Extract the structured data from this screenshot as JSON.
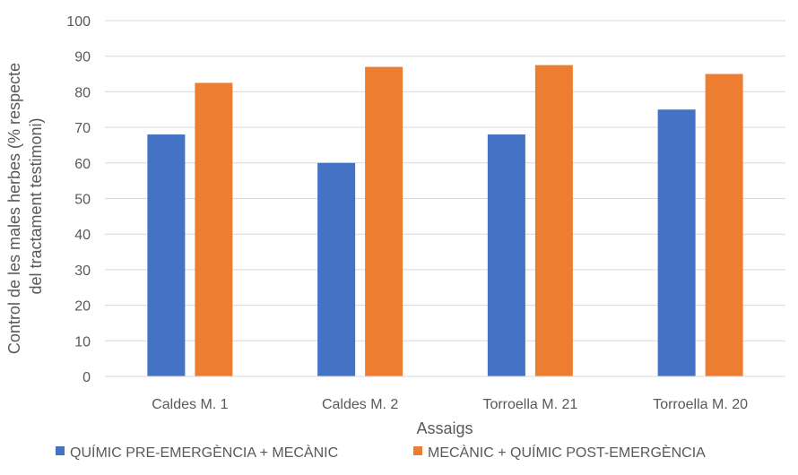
{
  "chart_data": {
    "type": "bar",
    "xlabel": "Assaigs",
    "ylabel_lines": [
      "Control de les males herbes (% respecte",
      "del tractament testimoni)"
    ],
    "categories": [
      "Caldes M. 1",
      "Caldes M. 2",
      "Torroella M. 21",
      "Torroella M. 20"
    ],
    "series": [
      {
        "name": "QUÍMIC PRE-EMERGÈNCIA + MECÀNIC",
        "color": "#4472C4",
        "values": [
          68,
          60,
          68,
          75
        ]
      },
      {
        "name": "MECÀNIC + QUÍMIC POST-EMERGÈNCIA",
        "color": "#ED7D31",
        "values": [
          82.5,
          87,
          87.5,
          85
        ]
      }
    ],
    "ylim": [
      0,
      100
    ],
    "yticks": [
      "0",
      "10",
      "20",
      "30",
      "40",
      "50",
      "60",
      "70",
      "80",
      "90",
      "100"
    ],
    "grid": true,
    "legend_position": "bottom"
  }
}
